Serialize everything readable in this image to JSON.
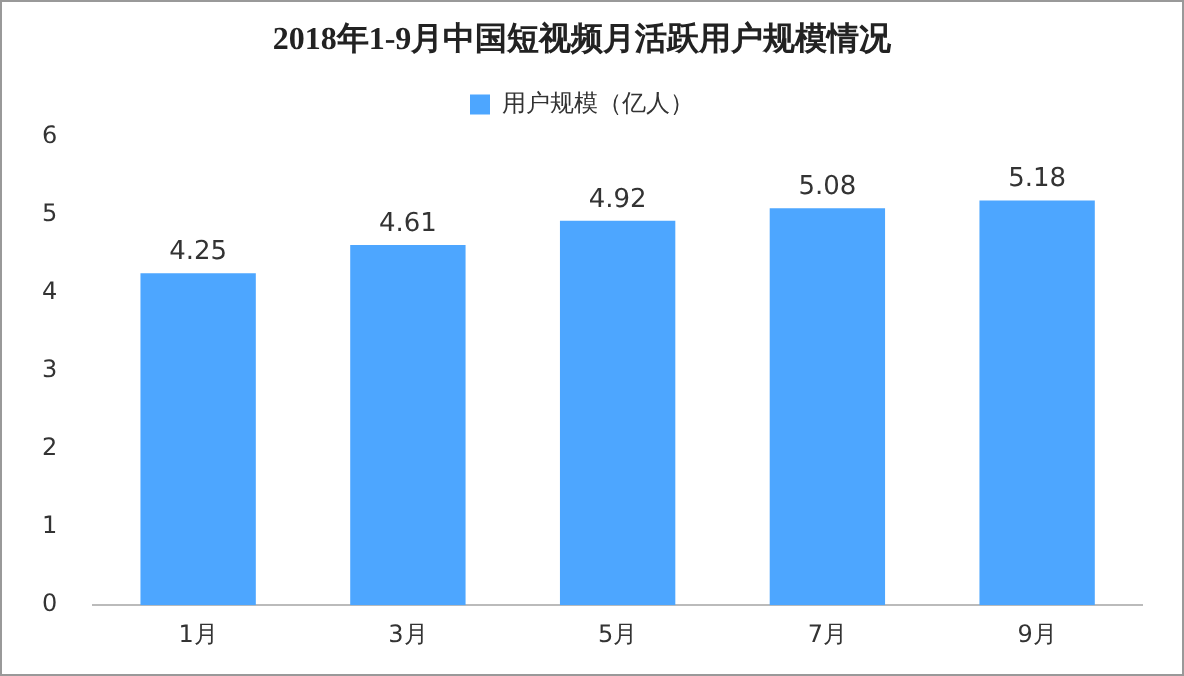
{
  "chart_data": {
    "type": "bar",
    "title": "2018年1-9月中国短视频月活跃用户规模情况",
    "categories": [
      "1月",
      "3月",
      "5月",
      "7月",
      "9月"
    ],
    "series": [
      {
        "name": "用户规模（亿人）",
        "color": "#4da6ff",
        "values": [
          4.25,
          4.61,
          4.92,
          5.08,
          5.18
        ]
      }
    ],
    "ylim": [
      0,
      6
    ],
    "yticks": [
      0,
      1,
      2,
      3,
      4,
      5,
      6
    ],
    "grid": false,
    "legend": "top",
    "data_labels": true
  }
}
